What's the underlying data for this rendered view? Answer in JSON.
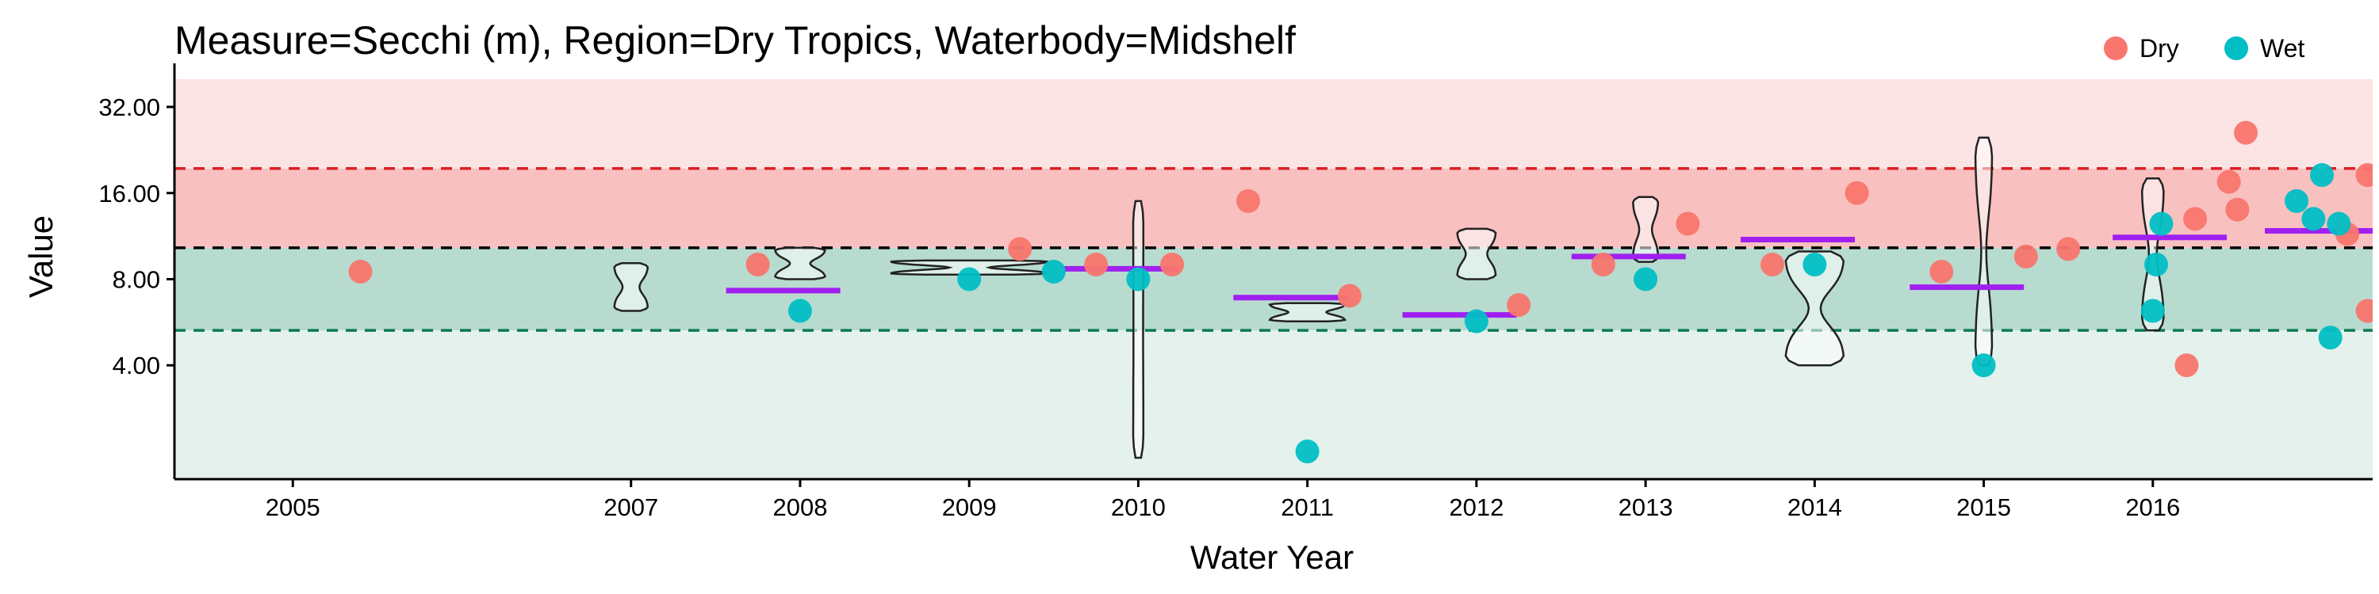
{
  "chart_data": {
    "type": "scatter",
    "title": "Measure=Secchi (m), Region=Dry Tropics, Waterbody=Midshelf",
    "xlabel": "Water Year",
    "ylabel": "Value",
    "y_scale": "log2",
    "ylim": [
      1.6,
      40
    ],
    "y_ticks": [
      4,
      8,
      16,
      32
    ],
    "y_tick_labels": [
      "4.00",
      "8.00",
      "16.00",
      "32.00"
    ],
    "x_ticks": [
      2005,
      2007,
      2008,
      2009,
      2010,
      2011,
      2012,
      2013,
      2014,
      2015,
      2016
    ],
    "x_tick_labels": [
      "2005",
      "2007",
      "2008",
      "2009",
      "2010",
      "2011",
      "2012",
      "2013",
      "2014",
      "2015",
      "2016"
    ],
    "xlim": [
      2004.3,
      2017.3
    ],
    "legend": {
      "position": "top-right",
      "entries": [
        {
          "label": "Dry",
          "color": "#F8766D"
        },
        {
          "label": "Wet",
          "color": "#00BFC4"
        }
      ]
    },
    "grid": false,
    "bands": [
      {
        "from": 1.6,
        "to": 5.3,
        "color": "#e4f1ec",
        "name": "lower-green-band"
      },
      {
        "from": 5.3,
        "to": 10.3,
        "color": "#b8dbd0",
        "name": "upper-green-band"
      },
      {
        "from": 10.3,
        "to": 19.5,
        "color": "#f9c0c0",
        "name": "lower-red-band"
      },
      {
        "from": 19.5,
        "to": 40,
        "color": "#fce4e4",
        "name": "upper-red-band"
      }
    ],
    "reference_lines": [
      {
        "value": 19.5,
        "color": "#dd1f26",
        "style": "dashed",
        "name": "upper-red-line"
      },
      {
        "value": 10.3,
        "color": "#000000",
        "style": "dashed",
        "name": "guideline-line"
      },
      {
        "value": 5.3,
        "color": "#0b7a50",
        "style": "dashed",
        "name": "lower-green-line"
      }
    ],
    "series": [
      {
        "name": "Dry",
        "color": "#F8766D",
        "points": [
          {
            "x": 2005.4,
            "y": 8.5
          },
          {
            "x": 2007.75,
            "y": 9.0
          },
          {
            "x": 2009.3,
            "y": 10.2
          },
          {
            "x": 2009.75,
            "y": 9.0
          },
          {
            "x": 2010.2,
            "y": 9.0
          },
          {
            "x": 2010.65,
            "y": 15.0
          },
          {
            "x": 2011.25,
            "y": 7.0
          },
          {
            "x": 2012.25,
            "y": 6.5
          },
          {
            "x": 2012.75,
            "y": 9.0
          },
          {
            "x": 2013.25,
            "y": 12.5
          },
          {
            "x": 2013.75,
            "y": 9.0
          },
          {
            "x": 2014.25,
            "y": 16.0
          },
          {
            "x": 2014.75,
            "y": 8.5
          },
          {
            "x": 2015.25,
            "y": 9.6
          },
          {
            "x": 2015.5,
            "y": 10.2
          },
          {
            "x": 2016.2,
            "y": 4.0
          },
          {
            "x": 2016.25,
            "y": 13.0
          },
          {
            "x": 2016.45,
            "y": 17.5
          },
          {
            "x": 2016.5,
            "y": 14.0
          },
          {
            "x": 2016.55,
            "y": 26.0
          },
          {
            "x": 2017.15,
            "y": 11.5
          },
          {
            "x": 2017.27,
            "y": 18.5
          },
          {
            "x": 2017.27,
            "y": 6.2
          }
        ]
      },
      {
        "name": "Wet",
        "color": "#00BFC4",
        "points": [
          {
            "x": 2008.0,
            "y": 6.2
          },
          {
            "x": 2009.0,
            "y": 8.0
          },
          {
            "x": 2009.5,
            "y": 8.5
          },
          {
            "x": 2010.0,
            "y": 8.0
          },
          {
            "x": 2011.0,
            "y": 2.0
          },
          {
            "x": 2012.0,
            "y": 5.7
          },
          {
            "x": 2013.0,
            "y": 8.0
          },
          {
            "x": 2014.0,
            "y": 9.0
          },
          {
            "x": 2015.0,
            "y": 4.0
          },
          {
            "x": 2016.0,
            "y": 6.2
          },
          {
            "x": 2016.02,
            "y": 9.0
          },
          {
            "x": 2016.05,
            "y": 12.5
          },
          {
            "x": 2016.85,
            "y": 15.0
          },
          {
            "x": 2016.95,
            "y": 13.0
          },
          {
            "x": 2017.0,
            "y": 18.5
          },
          {
            "x": 2017.05,
            "y": 5.0
          },
          {
            "x": 2017.1,
            "y": 12.5
          }
        ]
      }
    ],
    "violins": [
      {
        "x": 2007.0,
        "y_min": 6.2,
        "y_max": 9.1,
        "max_width": 0.2,
        "waist": 0.5
      },
      {
        "x": 2008.0,
        "y_min": 8.0,
        "y_max": 10.3,
        "max_width": 0.3,
        "waist": 0.4
      },
      {
        "x": 2009.0,
        "y_min": 8.3,
        "y_max": 9.3,
        "max_width": 0.95,
        "waist": 0.25
      },
      {
        "x": 2010.0,
        "y_min": 1.9,
        "y_max": 15.0,
        "max_width": 0.06,
        "waist": 0.95
      },
      {
        "x": 2011.0,
        "y_min": 5.7,
        "y_max": 6.6,
        "max_width": 0.45,
        "waist": 0.5
      },
      {
        "x": 2012.0,
        "y_min": 8.0,
        "y_max": 12.0,
        "max_width": 0.23,
        "waist": 0.55
      },
      {
        "x": 2013.0,
        "y_min": 9.2,
        "y_max": 15.5,
        "max_width": 0.15,
        "waist": 0.5
      },
      {
        "x": 2014.0,
        "y_min": 4.0,
        "y_max": 10.0,
        "max_width": 0.35,
        "waist": 0.2
      },
      {
        "x": 2015.0,
        "y_min": 4.0,
        "y_max": 25.0,
        "max_width": 0.1,
        "waist": 0.3
      },
      {
        "x": 2016.0,
        "y_min": 5.3,
        "y_max": 18.0,
        "max_width": 0.13,
        "waist": 0.35
      }
    ],
    "medians": [
      {
        "x": 2007.9,
        "y": 7.3
      },
      {
        "x": 2009.9,
        "y": 8.7
      },
      {
        "x": 2010.9,
        "y": 6.9
      },
      {
        "x": 2011.9,
        "y": 6.0
      },
      {
        "x": 2012.9,
        "y": 9.6
      },
      {
        "x": 2013.9,
        "y": 11.0
      },
      {
        "x": 2014.9,
        "y": 7.5
      },
      {
        "x": 2016.1,
        "y": 11.2
      },
      {
        "x": 2017.0,
        "y": 11.8
      }
    ],
    "median_color": "#a020f0"
  }
}
